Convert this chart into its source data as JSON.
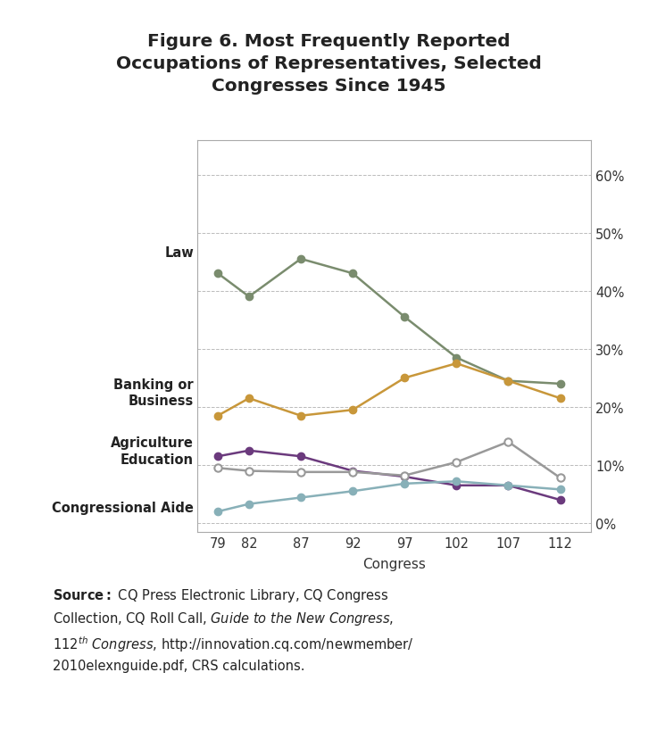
{
  "title": "Figure 6. Most Frequently Reported\nOccupations of Representatives, Selected\nCongresses Since 1945",
  "xlabel": "Congress",
  "congresses": [
    79,
    82,
    87,
    92,
    97,
    102,
    107,
    112
  ],
  "series": {
    "Law": {
      "values": [
        0.43,
        0.39,
        0.455,
        0.43,
        0.355,
        0.285,
        0.245,
        0.24
      ],
      "color": "#7a8c6e",
      "marker_fill": "#7a8c6e",
      "linewidth": 1.8
    },
    "Banking or\nBusiness": {
      "values": [
        0.185,
        0.215,
        0.185,
        0.195,
        0.25,
        0.275,
        0.245,
        0.215
      ],
      "color": "#c8973a",
      "marker_fill": "#c8973a",
      "linewidth": 1.8
    },
    "Agriculture": {
      "values": [
        0.115,
        0.125,
        0.115,
        0.09,
        0.08,
        0.065,
        0.065,
        0.04
      ],
      "color": "#6b3a7d",
      "marker_fill": "#6b3a7d",
      "linewidth": 1.8
    },
    "Education": {
      "values": [
        0.095,
        0.09,
        0.088,
        0.088,
        0.082,
        0.105,
        0.14,
        0.078
      ],
      "color": "#999999",
      "marker_fill": "white",
      "linewidth": 1.8
    },
    "Congressional Aide": {
      "values": [
        0.02,
        0.033,
        0.044,
        0.055,
        0.068,
        0.072,
        0.065,
        0.058
      ],
      "color": "#88b0b8",
      "marker_fill": "#88b0b8",
      "linewidth": 1.8
    }
  },
  "series_order": [
    "Law",
    "Banking or\nBusiness",
    "Agriculture",
    "Education",
    "Congressional Aide"
  ],
  "yticks": [
    0.0,
    0.1,
    0.2,
    0.3,
    0.4,
    0.5,
    0.6
  ],
  "ytick_labels": [
    "0%",
    "10%",
    "20%",
    "30%",
    "40%",
    "50%",
    "60%"
  ],
  "ylim": [
    -0.015,
    0.66
  ],
  "xlim": [
    77,
    115
  ],
  "background_color": "#ffffff",
  "title_fontsize": 14.5,
  "axis_fontsize": 10.5
}
